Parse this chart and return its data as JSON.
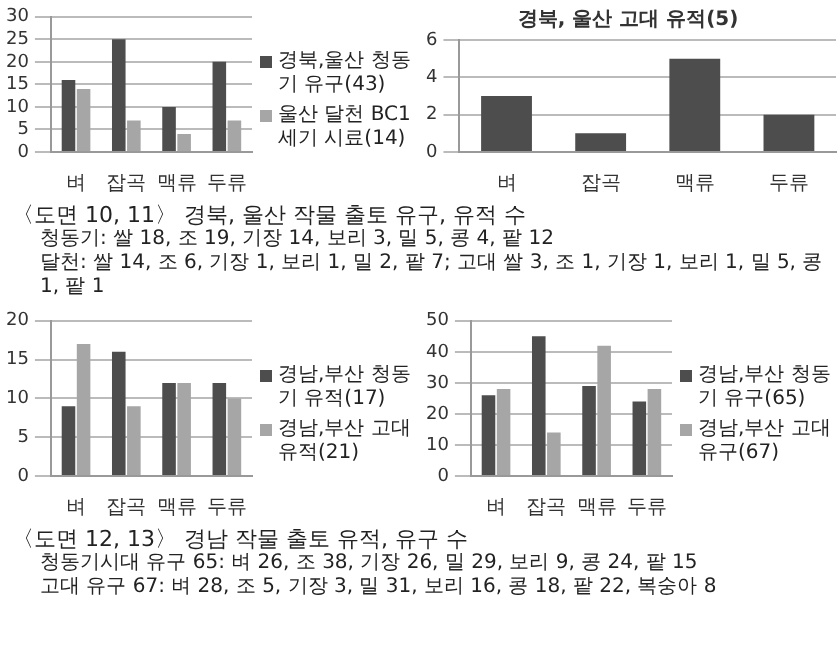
{
  "chart_data": [
    {
      "type": "bar",
      "categories": [
        "벼",
        "잡곡",
        "맥류",
        "두류"
      ],
      "series": [
        {
          "name": "경북,울산 청동기 유구(43)",
          "color": "#4d4d4d",
          "values": [
            16,
            25,
            10,
            20
          ]
        },
        {
          "name": "울산 달천 BC1세기 시료(14)",
          "color": "#a6a6a6",
          "values": [
            14,
            7,
            4,
            7
          ]
        }
      ],
      "ylim": [
        0,
        30
      ],
      "yticks": [
        0,
        5,
        10,
        15,
        20,
        25,
        30
      ],
      "grid": "y",
      "legend": "right",
      "annotations": [
        "〈도면 10, 11〉 경북, 울산 작물 출토 유구, 유적 수",
        "청동기: 쌀 18, 조 19, 기장 14, 보리 3, 밀 5, 콩 4, 팥 12",
        "달천: 쌀 14, 조 6, 기장 1, 보리 1, 밀 2, 팥 7;    고대 쌀 3, 조 1, 기장 1, 보리 1, 밀 5, 콩 1, 팥 1"
      ]
    },
    {
      "type": "bar",
      "title": "경북, 울산 고대 유적(5)",
      "categories": [
        "벼",
        "잡곡",
        "맥류",
        "두류"
      ],
      "series": [
        {
          "color": "#4d4d4d",
          "values": [
            3,
            1,
            5,
            2
          ]
        }
      ],
      "ylim": [
        0,
        6
      ],
      "yticks": [
        0,
        2,
        4,
        6
      ],
      "grid": "y"
    },
    {
      "type": "bar",
      "categories": [
        "벼",
        "잡곡",
        "맥류",
        "두류"
      ],
      "series": [
        {
          "name": "경남,부산 청동기 유적(17)",
          "color": "#4d4d4d",
          "values": [
            9,
            16,
            12,
            12
          ]
        },
        {
          "name": "경남,부산 고대 유적(21)",
          "color": "#a6a6a6",
          "values": [
            17,
            9,
            12,
            10
          ]
        }
      ],
      "ylim": [
        0,
        20
      ],
      "yticks": [
        0,
        5,
        10,
        15,
        20
      ],
      "grid": "y",
      "legend": "right",
      "annotations": [
        "〈도면 12, 13〉 경남 작물 출토 유적, 유구 수",
        "청동기시대 유구 65: 벼 26, 조 38, 기장 26, 밀 29, 보리 9, 콩 24, 팥 15",
        "고대 유구 67: 벼 28, 조 5, 기장 3, 밀 31, 보리 16, 콩 18, 팥 22, 복숭아 8"
      ]
    },
    {
      "type": "bar",
      "categories": [
        "벼",
        "잡곡",
        "맥류",
        "두류"
      ],
      "series": [
        {
          "name": "경남,부산 청동기 유구(65)",
          "color": "#4d4d4d",
          "values": [
            26,
            45,
            29,
            24
          ]
        },
        {
          "name": "경남,부산 고대 유구(67)",
          "color": "#a6a6a6",
          "values": [
            28,
            14,
            42,
            28
          ]
        }
      ],
      "ylim": [
        0,
        50
      ],
      "yticks": [
        0,
        10,
        20,
        30,
        40,
        50
      ],
      "grid": "y",
      "legend": "right"
    }
  ]
}
